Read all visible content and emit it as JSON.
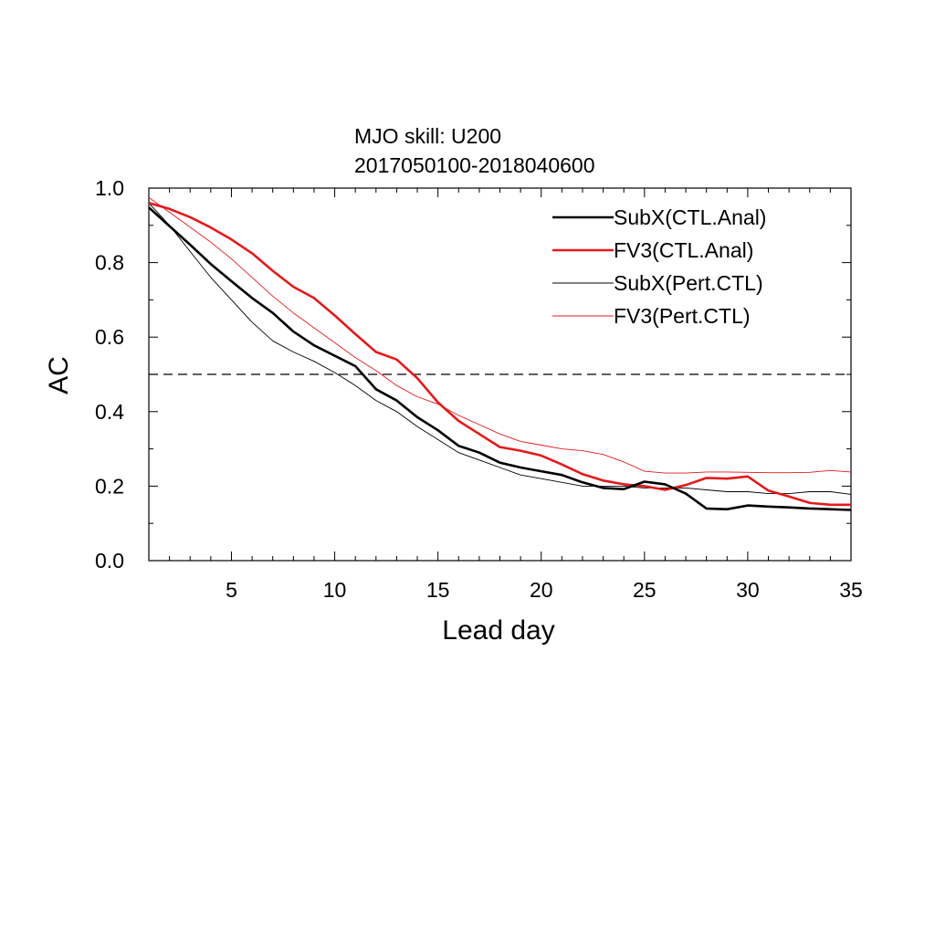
{
  "chart_data": {
    "type": "line",
    "title": "MJO skill: U200",
    "subtitle": "2017050100-2018040600",
    "xlabel": "Lead day",
    "ylabel": "AC",
    "xlim": [
      1,
      35
    ],
    "ylim": [
      0.0,
      1.0
    ],
    "x_ticks": [
      5,
      10,
      15,
      20,
      25,
      30,
      35
    ],
    "y_ticks": [
      0.0,
      0.2,
      0.4,
      0.6,
      0.8,
      1.0
    ],
    "x_tick_labels": [
      "5",
      "10",
      "15",
      "20",
      "25",
      "30",
      "35"
    ],
    "y_tick_labels": [
      "0.0",
      "0.2",
      "0.4",
      "0.6",
      "0.8",
      "1.0"
    ],
    "grid": false,
    "legend_position": "top-right",
    "reference_line": {
      "y": 0.5,
      "style": "dashed",
      "color": "#000000"
    },
    "x": [
      1,
      2,
      3,
      4,
      5,
      6,
      7,
      8,
      9,
      10,
      11,
      12,
      13,
      14,
      15,
      16,
      17,
      18,
      19,
      20,
      21,
      22,
      23,
      24,
      25,
      26,
      27,
      28,
      29,
      30,
      31,
      32,
      33,
      34,
      35
    ],
    "series": [
      {
        "name": "SubX(CTL.Anal)",
        "color": "#000000",
        "width": "thick",
        "values": [
          0.948,
          0.898,
          0.848,
          0.796,
          0.75,
          0.705,
          0.665,
          0.615,
          0.578,
          0.55,
          0.522,
          0.46,
          0.43,
          0.385,
          0.35,
          0.308,
          0.29,
          0.263,
          0.25,
          0.24,
          0.23,
          0.21,
          0.195,
          0.192,
          0.212,
          0.205,
          0.18,
          0.14,
          0.138,
          0.148,
          0.145,
          0.143,
          0.14,
          0.138,
          0.136
        ]
      },
      {
        "name": "FV3(CTL.Anal)",
        "color": "#e31a1c",
        "width": "thick",
        "values": [
          0.96,
          0.944,
          0.922,
          0.894,
          0.862,
          0.825,
          0.778,
          0.735,
          0.705,
          0.658,
          0.608,
          0.56,
          0.54,
          0.49,
          0.425,
          0.375,
          0.34,
          0.305,
          0.295,
          0.282,
          0.258,
          0.232,
          0.215,
          0.205,
          0.2,
          0.19,
          0.203,
          0.222,
          0.22,
          0.226,
          0.188,
          0.172,
          0.155,
          0.15,
          0.15
        ]
      },
      {
        "name": "SubX(Pert.CTL)",
        "color": "#000000",
        "width": "thin",
        "values": [
          0.96,
          0.9,
          0.83,
          0.76,
          0.7,
          0.64,
          0.59,
          0.56,
          0.535,
          0.505,
          0.47,
          0.43,
          0.4,
          0.36,
          0.325,
          0.29,
          0.27,
          0.25,
          0.23,
          0.22,
          0.21,
          0.2,
          0.2,
          0.2,
          0.195,
          0.195,
          0.195,
          0.19,
          0.185,
          0.185,
          0.18,
          0.18,
          0.185,
          0.185,
          0.178
        ]
      },
      {
        "name": "FV3(Pert.CTL)",
        "color": "#e31a1c",
        "width": "thin",
        "values": [
          0.975,
          0.935,
          0.895,
          0.855,
          0.81,
          0.76,
          0.71,
          0.665,
          0.625,
          0.585,
          0.545,
          0.51,
          0.47,
          0.44,
          0.42,
          0.39,
          0.365,
          0.34,
          0.32,
          0.31,
          0.3,
          0.295,
          0.285,
          0.265,
          0.24,
          0.235,
          0.235,
          0.238,
          0.238,
          0.237,
          0.236,
          0.236,
          0.237,
          0.242,
          0.238
        ]
      }
    ]
  }
}
